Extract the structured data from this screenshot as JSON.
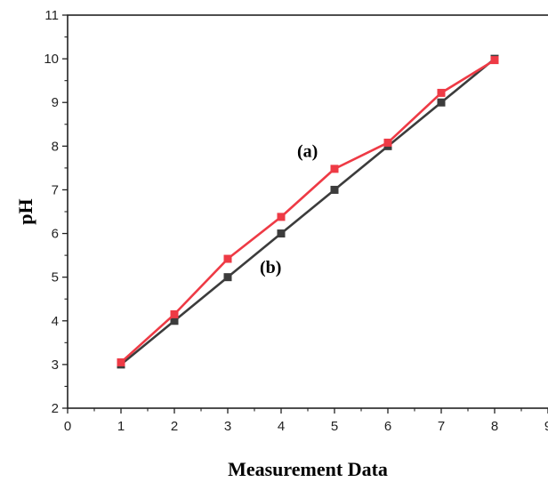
{
  "chart_data": {
    "type": "line",
    "xlabel": "Measurement Data",
    "ylabel": "pH",
    "xlim": [
      0,
      9
    ],
    "ylim": [
      2,
      11
    ],
    "xticks": [
      0,
      1,
      2,
      3,
      4,
      5,
      6,
      7,
      8,
      9
    ],
    "yticks": [
      2,
      3,
      4,
      5,
      6,
      7,
      8,
      9,
      10,
      11
    ],
    "grid": false,
    "x": [
      1,
      2,
      3,
      4,
      5,
      6,
      7,
      8
    ],
    "series": [
      {
        "name": "",
        "color": "#3c3c3c",
        "marker": "square",
        "values": [
          3.0,
          4.0,
          5.0,
          6.0,
          7.0,
          8.0,
          9.0,
          10.0
        ]
      },
      {
        "name": "",
        "color": "#ee3a45",
        "marker": "square",
        "values": [
          3.05,
          4.15,
          5.42,
          6.38,
          7.48,
          8.08,
          9.22,
          9.97
        ]
      }
    ],
    "annotations": [
      {
        "text": "(a)",
        "series": 1
      },
      {
        "text": "(b)",
        "series": 0
      }
    ]
  }
}
